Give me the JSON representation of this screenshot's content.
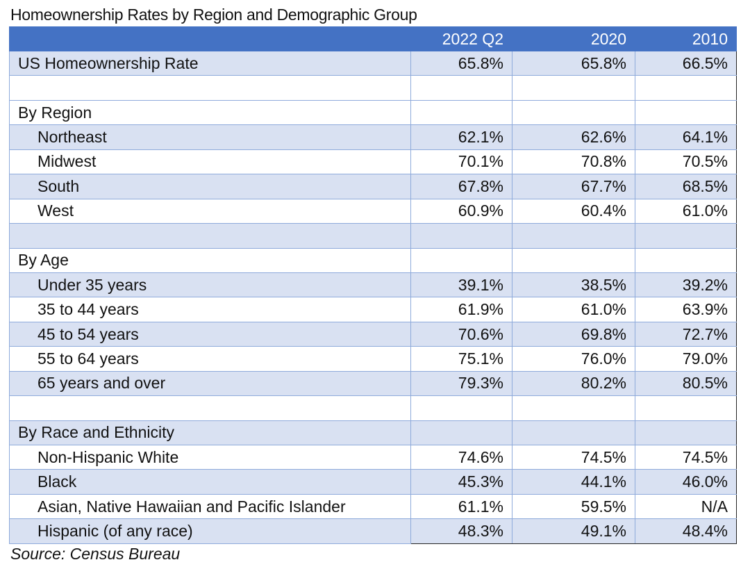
{
  "title": "Homeownership Rates by Region and Demographic Group",
  "columns": [
    "",
    "2022 Q2",
    "2020",
    "2010"
  ],
  "rows": [
    {
      "label": "US Homeownership Rate",
      "values": [
        "65.8%",
        "65.8%",
        "66.5%"
      ],
      "indent": false,
      "shade": true
    },
    {
      "label": "",
      "values": [
        "",
        "",
        ""
      ],
      "indent": false,
      "shade": false
    },
    {
      "label": "By Region",
      "values": [
        "",
        "",
        ""
      ],
      "indent": false,
      "shade": false
    },
    {
      "label": "Northeast",
      "values": [
        "62.1%",
        "62.6%",
        "64.1%"
      ],
      "indent": true,
      "shade": true
    },
    {
      "label": "Midwest",
      "values": [
        "70.1%",
        "70.8%",
        "70.5%"
      ],
      "indent": true,
      "shade": false
    },
    {
      "label": "South",
      "values": [
        "67.8%",
        "67.7%",
        "68.5%"
      ],
      "indent": true,
      "shade": true
    },
    {
      "label": "West",
      "values": [
        "60.9%",
        "60.4%",
        "61.0%"
      ],
      "indent": true,
      "shade": false
    },
    {
      "label": "",
      "values": [
        "",
        "",
        ""
      ],
      "indent": false,
      "shade": true
    },
    {
      "label": "By Age",
      "values": [
        "",
        "",
        ""
      ],
      "indent": false,
      "shade": false
    },
    {
      "label": "Under 35 years",
      "values": [
        "39.1%",
        "38.5%",
        "39.2%"
      ],
      "indent": true,
      "shade": true
    },
    {
      "label": "35 to 44 years",
      "values": [
        "61.9%",
        "61.0%",
        "63.9%"
      ],
      "indent": true,
      "shade": false
    },
    {
      "label": "45 to 54 years",
      "values": [
        "70.6%",
        "69.8%",
        "72.7%"
      ],
      "indent": true,
      "shade": true
    },
    {
      "label": "55 to 64 years",
      "values": [
        "75.1%",
        "76.0%",
        "79.0%"
      ],
      "indent": true,
      "shade": false
    },
    {
      "label": "65 years and over",
      "values": [
        "79.3%",
        "80.2%",
        "80.5%"
      ],
      "indent": true,
      "shade": true
    },
    {
      "label": "",
      "values": [
        "",
        "",
        ""
      ],
      "indent": false,
      "shade": false
    },
    {
      "label": "By Race and Ethnicity",
      "values": [
        "",
        "",
        ""
      ],
      "indent": false,
      "shade": true
    },
    {
      "label": "Non-Hispanic White",
      "values": [
        "74.6%",
        "74.5%",
        "74.5%"
      ],
      "indent": true,
      "shade": false
    },
    {
      "label": "Black",
      "values": [
        "45.3%",
        "44.1%",
        "46.0%"
      ],
      "indent": true,
      "shade": true
    },
    {
      "label": "Asian, Native Hawaiian and Pacific Islander",
      "values": [
        "61.1%",
        "59.5%",
        "N/A"
      ],
      "indent": true,
      "shade": false
    },
    {
      "label": "Hispanic (of any race)",
      "values": [
        "48.3%",
        "49.1%",
        "48.4%"
      ],
      "indent": true,
      "shade": true
    }
  ],
  "source": "Source: Census Bureau",
  "colors": {
    "header": "#4472c4",
    "band": "#d9e1f2",
    "grid": "#8eaadb"
  }
}
